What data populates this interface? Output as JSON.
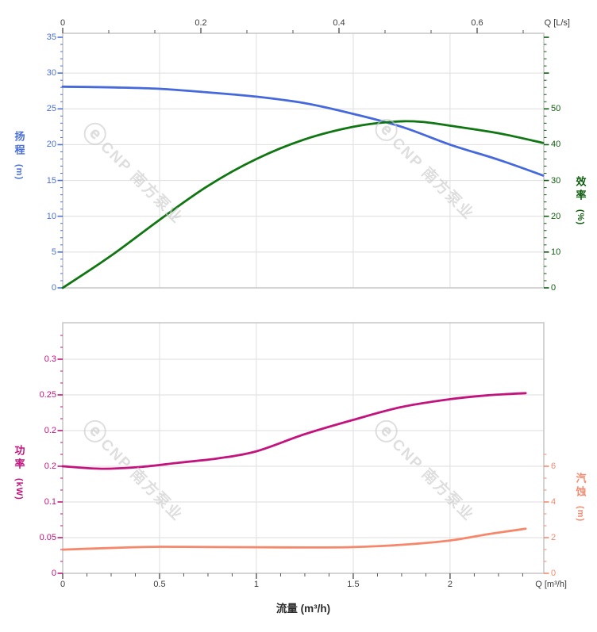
{
  "watermark": {
    "logo": "ⓔ",
    "text": "CNP 南方泵业"
  },
  "chart_data": {
    "type": "line",
    "grid": true,
    "panels": [
      {
        "name": "head-efficiency",
        "top_axis": {
          "title": "Q [L/s]",
          "ticks": [
            "0",
            "0.2",
            "0.4",
            "0.6"
          ],
          "tick_values": [
            0,
            0.2,
            0.4,
            0.6
          ],
          "range": [
            0,
            0.697
          ]
        },
        "left_axis": {
          "title": "扬程",
          "unit": "(m)",
          "ticks": [
            "35",
            "30",
            "25",
            "20",
            "15",
            "10",
            "5",
            "0"
          ],
          "tick_values": [
            35,
            30,
            25,
            20,
            15,
            10,
            5,
            0
          ],
          "range": [
            0,
            35.5
          ],
          "color": "#4a6fd8"
        },
        "right_axis": {
          "title": "效率",
          "unit": "(%)",
          "ticks": [
            "50",
            "40",
            "30",
            "20",
            "10",
            "0"
          ],
          "tick_values": [
            50,
            40,
            30,
            20,
            10,
            0
          ],
          "range": [
            0,
            71
          ],
          "color": "#0e5c0e"
        },
        "series": [
          {
            "name": "head-curve",
            "axis": "left",
            "color": "#4569dd",
            "points": [
              [
                0,
                28.1
              ],
              [
                0.25,
                28.0
              ],
              [
                0.5,
                27.8
              ],
              [
                0.75,
                27.3
              ],
              [
                1.0,
                26.7
              ],
              [
                1.25,
                25.8
              ],
              [
                1.5,
                24.3
              ],
              [
                1.75,
                22.5
              ],
              [
                2.0,
                20.0
              ],
              [
                2.25,
                17.9
              ],
              [
                2.48,
                15.7
              ]
            ]
          },
          {
            "name": "efficiency-curve",
            "axis": "right",
            "color": "#107612",
            "points": [
              [
                0,
                0
              ],
              [
                0.25,
                9
              ],
              [
                0.5,
                19
              ],
              [
                0.75,
                28.5
              ],
              [
                1.0,
                36
              ],
              [
                1.25,
                41.5
              ],
              [
                1.5,
                45
              ],
              [
                1.7,
                46.4
              ],
              [
                1.85,
                46.4
              ],
              [
                2.0,
                45.3
              ],
              [
                2.25,
                43.2
              ],
              [
                2.48,
                40.5
              ]
            ]
          }
        ]
      },
      {
        "name": "power-npsh",
        "bottom_axis": {
          "title": "Q [m³/h]",
          "xlabel": "流量 (m³/h)",
          "ticks": [
            "0",
            "0.5",
            "1",
            "1.5",
            "2"
          ],
          "tick_values": [
            0,
            0.5,
            1,
            1.5,
            2
          ],
          "range": [
            0,
            2.484
          ]
        },
        "left_axis": {
          "title": "功率",
          "unit": "(kW)",
          "ticks": [
            "0.3",
            "0.25",
            "0.2",
            "0.2",
            "0.1",
            "0.05",
            "0"
          ],
          "tick_values": [
            0.3,
            0.25,
            0.2,
            0.15,
            0.1,
            0.05,
            0
          ],
          "range": [
            0,
            0.351
          ],
          "color": "#c3147d"
        },
        "right_axis": {
          "title": "汽蚀",
          "unit": "(m)",
          "ticks": [
            "6",
            "4",
            "2",
            "0"
          ],
          "tick_values": [
            6,
            4,
            2,
            0
          ],
          "range": [
            0,
            14
          ],
          "color": "#f48a70"
        },
        "series": [
          {
            "name": "power-curve",
            "axis": "left",
            "color": "#c3147d",
            "points": [
              [
                0,
                0.15
              ],
              [
                0.2,
                0.1465
              ],
              [
                0.4,
                0.149
              ],
              [
                0.6,
                0.155
              ],
              [
                0.8,
                0.161
              ],
              [
                1.0,
                0.171
              ],
              [
                1.25,
                0.195
              ],
              [
                1.5,
                0.215
              ],
              [
                1.75,
                0.233
              ],
              [
                2.0,
                0.244
              ],
              [
                2.2,
                0.2495
              ],
              [
                2.39,
                0.2525
              ]
            ]
          },
          {
            "name": "npsh-curve",
            "axis": "right",
            "color": "#f6876a",
            "points": [
              [
                0,
                1.33
              ],
              [
                0.3,
                1.44
              ],
              [
                0.5,
                1.49
              ],
              [
                0.8,
                1.47
              ],
              [
                1.0,
                1.46
              ],
              [
                1.3,
                1.45
              ],
              [
                1.5,
                1.47
              ],
              [
                1.75,
                1.6
              ],
              [
                2.0,
                1.84
              ],
              [
                2.2,
                2.2
              ],
              [
                2.39,
                2.5
              ]
            ]
          }
        ]
      }
    ]
  }
}
